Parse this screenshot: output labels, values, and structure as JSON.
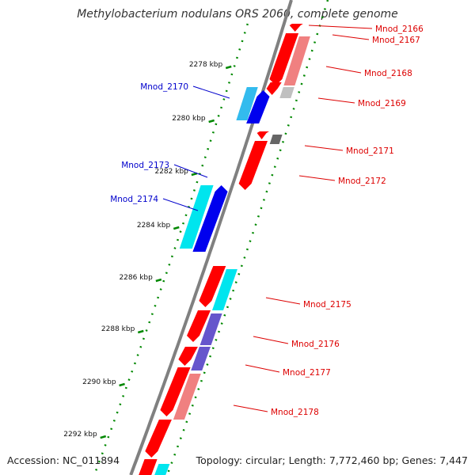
{
  "title": "Methylobacterium nodulans ORS 2060, complete genome",
  "footer": {
    "accession": "Accession: NC_011894",
    "topology": "Topology: circular; Length: 7,772,460 bp; Genes: 7,447"
  },
  "ticks": [
    "2278 kbp",
    "2280 kbp",
    "2282 kbp",
    "2284 kbp",
    "2286 kbp",
    "2288 kbp",
    "2290 kbp",
    "2292 kbp"
  ],
  "genes": [
    {
      "name": "Mnod_2166",
      "strand": "reverse",
      "color": "#ff0000"
    },
    {
      "name": "Mnod_2167",
      "strand": "reverse",
      "color": "#ff0000"
    },
    {
      "name": "Mnod_2168",
      "strand": "reverse",
      "color": "#ff0000"
    },
    {
      "name": "Mnod_2169",
      "strand": "reverse",
      "color": "#ff0000"
    },
    {
      "name": "Mnod_2170",
      "strand": "forward",
      "color": "#0000cc"
    },
    {
      "name": "Mnod_2171",
      "strand": "reverse",
      "color": "#ff0000"
    },
    {
      "name": "Mnod_2172",
      "strand": "reverse",
      "color": "#ff0000"
    },
    {
      "name": "Mnod_2173",
      "strand": "forward",
      "color": "#0000cc"
    },
    {
      "name": "Mnod_2174",
      "strand": "forward",
      "color": "#0000cc"
    },
    {
      "name": "Mnod_2175",
      "strand": "reverse",
      "color": "#ff0000"
    },
    {
      "name": "Mnod_2176",
      "strand": "reverse",
      "color": "#ff0000"
    },
    {
      "name": "Mnod_2177",
      "strand": "reverse",
      "color": "#ff0000"
    },
    {
      "name": "Mnod_2178",
      "strand": "reverse",
      "color": "#ff0000"
    }
  ],
  "colors": {
    "forward_label": "#0000cc",
    "reverse_label": "#dd0000",
    "cds_red": "#ff0000",
    "cds_blue": "#0000ee",
    "cds_cyan": "#00e5ee",
    "cds_light_blue": "#33bbee",
    "cds_salmon": "#f08080",
    "cds_purple": "#6655cc",
    "cds_gray": "#c0c0c0",
    "cds_dark_gray": "#666666",
    "backbone": "#808080",
    "gc_dots": "#008800"
  }
}
